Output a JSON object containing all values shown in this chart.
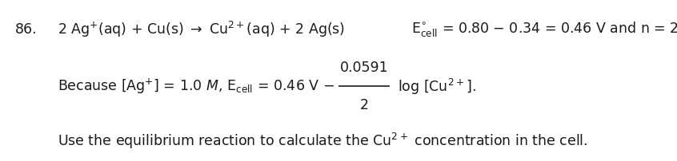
{
  "background_color": "#ffffff",
  "text_color": "#1a1a1a",
  "font_size": 12.5,
  "line1_num": "86.",
  "line1_eq": "2 Ag$^{+}$(aq) + Cu(s) → Cu$^{2+}$(aq) + 2 Ag(s)",
  "line1_ecell": "E$^{\\circ}_{\\rm cell}$ = 0.80 – 0.34 = 0.46 V and n = 2",
  "line2_left": "Because [Ag$^{+}$] = 1.0 $\\mathit{M}$, E$_{\\rm cell}$ = 0.46 V –",
  "line2_frac_num": "0.0591",
  "line2_frac_den": "2",
  "line2_right": "log [Cu$^{2+}$].",
  "line3": "Use the equilibrium reaction to calculate the Cu$^{2+}$ concentration in the cell."
}
